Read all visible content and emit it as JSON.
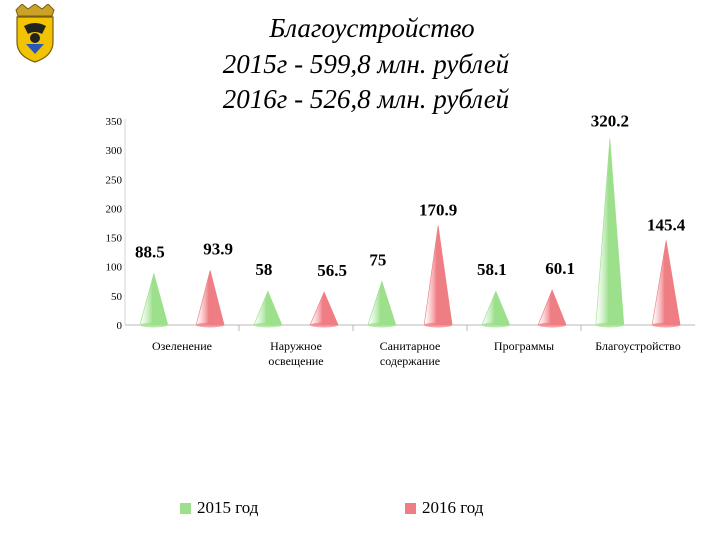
{
  "title_lines": [
    "Благоустройство",
    "2015г  -  599,8 млн. рублей",
    "2016г  -  526,8 млн. рублей"
  ],
  "crest": {
    "name": "city-coat-of-arms"
  },
  "colors": {
    "series_2015": "#9de08c",
    "series_2016": "#ef7d84"
  },
  "chart_data": {
    "type": "bar",
    "shape": "cone",
    "title": "",
    "categories": [
      "Озеленение",
      "Наружное освещение",
      "Санитарное содержание",
      "Программы",
      "Благоустройство"
    ],
    "series": [
      {
        "name": "2015 год",
        "values": [
          88.5,
          58,
          75,
          58.1,
          320.2
        ]
      },
      {
        "name": "2016 год",
        "values": [
          93.9,
          56.5,
          170.9,
          60.1,
          145.4
        ]
      }
    ],
    "data_labels": [
      [
        "88.5",
        "58",
        "75",
        "58.1",
        "320.2"
      ],
      [
        "93.9",
        "56.5",
        "170.9",
        "60.1",
        "145.4"
      ]
    ],
    "xlabel": "",
    "ylabel": "",
    "ylim": [
      0,
      350
    ],
    "yticks": [
      0,
      50,
      100,
      150,
      200,
      250,
      300,
      350
    ],
    "grid": false,
    "legend_position": "bottom"
  }
}
